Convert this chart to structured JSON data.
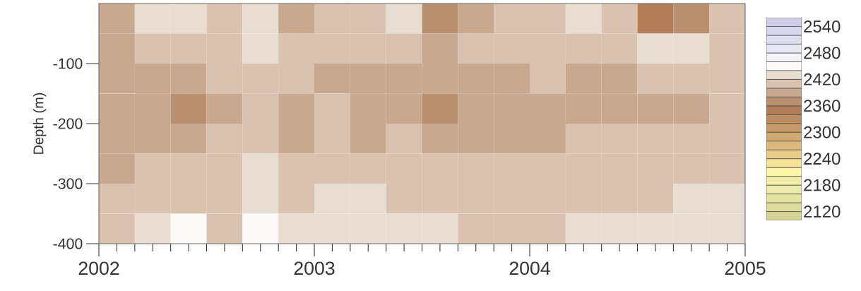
{
  "chart_data": {
    "type": "heatmap",
    "ylabel": "Depth (m)",
    "cells": [
      [
        2390,
        2430,
        2430,
        2410,
        2430,
        2390,
        2410,
        2410,
        2430,
        2370,
        2390,
        2410,
        2410,
        2430,
        2410,
        2350,
        2370,
        2410
      ],
      [
        2390,
        2410,
        2410,
        2410,
        2430,
        2410,
        2410,
        2410,
        2410,
        2390,
        2410,
        2410,
        2410,
        2410,
        2410,
        2430,
        2430,
        2410
      ],
      [
        2390,
        2390,
        2390,
        2410,
        2410,
        2410,
        2390,
        2390,
        2390,
        2390,
        2390,
        2390,
        2410,
        2390,
        2390,
        2410,
        2410,
        2410
      ],
      [
        2390,
        2390,
        2370,
        2390,
        2410,
        2390,
        2410,
        2390,
        2390,
        2370,
        2390,
        2390,
        2390,
        2390,
        2390,
        2390,
        2390,
        2410
      ],
      [
        2390,
        2390,
        2390,
        2410,
        2410,
        2390,
        2410,
        2390,
        2410,
        2390,
        2390,
        2390,
        2390,
        2410,
        2410,
        2410,
        2410,
        2410
      ],
      [
        2390,
        2410,
        2410,
        2410,
        2430,
        2410,
        2410,
        2410,
        2410,
        2410,
        2410,
        2410,
        2410,
        2410,
        2410,
        2410,
        2410,
        2410
      ],
      [
        2410,
        2410,
        2410,
        2410,
        2430,
        2410,
        2430,
        2430,
        2410,
        2410,
        2410,
        2410,
        2410,
        2410,
        2410,
        2410,
        2430,
        2430
      ],
      [
        2410,
        2430,
        2450,
        2410,
        2450,
        2430,
        2430,
        2430,
        2430,
        2430,
        2410,
        2410,
        2410,
        2430,
        2430,
        2430,
        2430,
        2430
      ]
    ],
    "colors": [
      "#d5d396",
      "#dedd9c",
      "#e4e4a2",
      "#ecebaa",
      "#f2eea8",
      "#fbf6a8",
      "#f5e39a",
      "#e8cc88",
      "#dcb87c",
      "#d1a870",
      "#c69a68",
      "#bd8c60",
      "#b27d58",
      "#b8906f",
      "#c8a88f",
      "#d9c2af",
      "#e8ddd1",
      "#fbfaf8",
      "#f3f3f9",
      "#e8e8f4",
      "#dfdef0",
      "#d8d7ee",
      "#cfcde8"
    ],
    "clim": [
      2100,
      2560
    ],
    "cticks": [
      2120,
      2180,
      2240,
      2300,
      2360,
      2420,
      2480,
      2540
    ],
    "xlim": [
      "2002",
      "2005"
    ],
    "xticks": [
      {
        "value": "2002",
        "label": "2002"
      },
      {
        "value": "2002-02",
        "label": null
      },
      {
        "value": "2002-03",
        "label": null
      },
      {
        "value": "2002-04",
        "label": null
      },
      {
        "value": "2002-05",
        "label": null
      },
      {
        "value": "2002-06",
        "label": null
      },
      {
        "value": "2002-07",
        "label": null
      },
      {
        "value": "2002-08",
        "label": null
      },
      {
        "value": "2002-09",
        "label": null
      },
      {
        "value": "2002-10",
        "label": null
      },
      {
        "value": "2002-11",
        "label": null
      },
      {
        "value": "2002-12",
        "label": null
      },
      {
        "value": "2003",
        "label": "2003"
      },
      {
        "value": "2003-02",
        "label": null
      },
      {
        "value": "2003-03",
        "label": null
      },
      {
        "value": "2003-04",
        "label": null
      },
      {
        "value": "2003-05",
        "label": null
      },
      {
        "value": "2003-06",
        "label": null
      },
      {
        "value": "2003-07",
        "label": null
      },
      {
        "value": "2003-08",
        "label": null
      },
      {
        "value": "2003-09",
        "label": null
      },
      {
        "value": "2003-10",
        "label": null
      },
      {
        "value": "2003-11",
        "label": null
      },
      {
        "value": "2003-12",
        "label": null
      },
      {
        "value": "2004",
        "label": "2004"
      },
      {
        "value": "2004-02",
        "label": null
      },
      {
        "value": "2004-03",
        "label": null
      },
      {
        "value": "2004-04",
        "label": null
      },
      {
        "value": "2004-05",
        "label": null
      },
      {
        "value": "2004-06",
        "label": null
      },
      {
        "value": "2004-07",
        "label": null
      },
      {
        "value": "2004-08",
        "label": null
      },
      {
        "value": "2004-09",
        "label": null
      },
      {
        "value": "2004-10",
        "label": null
      },
      {
        "value": "2004-11",
        "label": null
      },
      {
        "value": "2004-12",
        "label": null
      },
      {
        "value": "2005",
        "label": "2005"
      }
    ],
    "ylim": [
      -400,
      0
    ],
    "yticks": [
      -100,
      -200,
      -300,
      -400
    ]
  }
}
